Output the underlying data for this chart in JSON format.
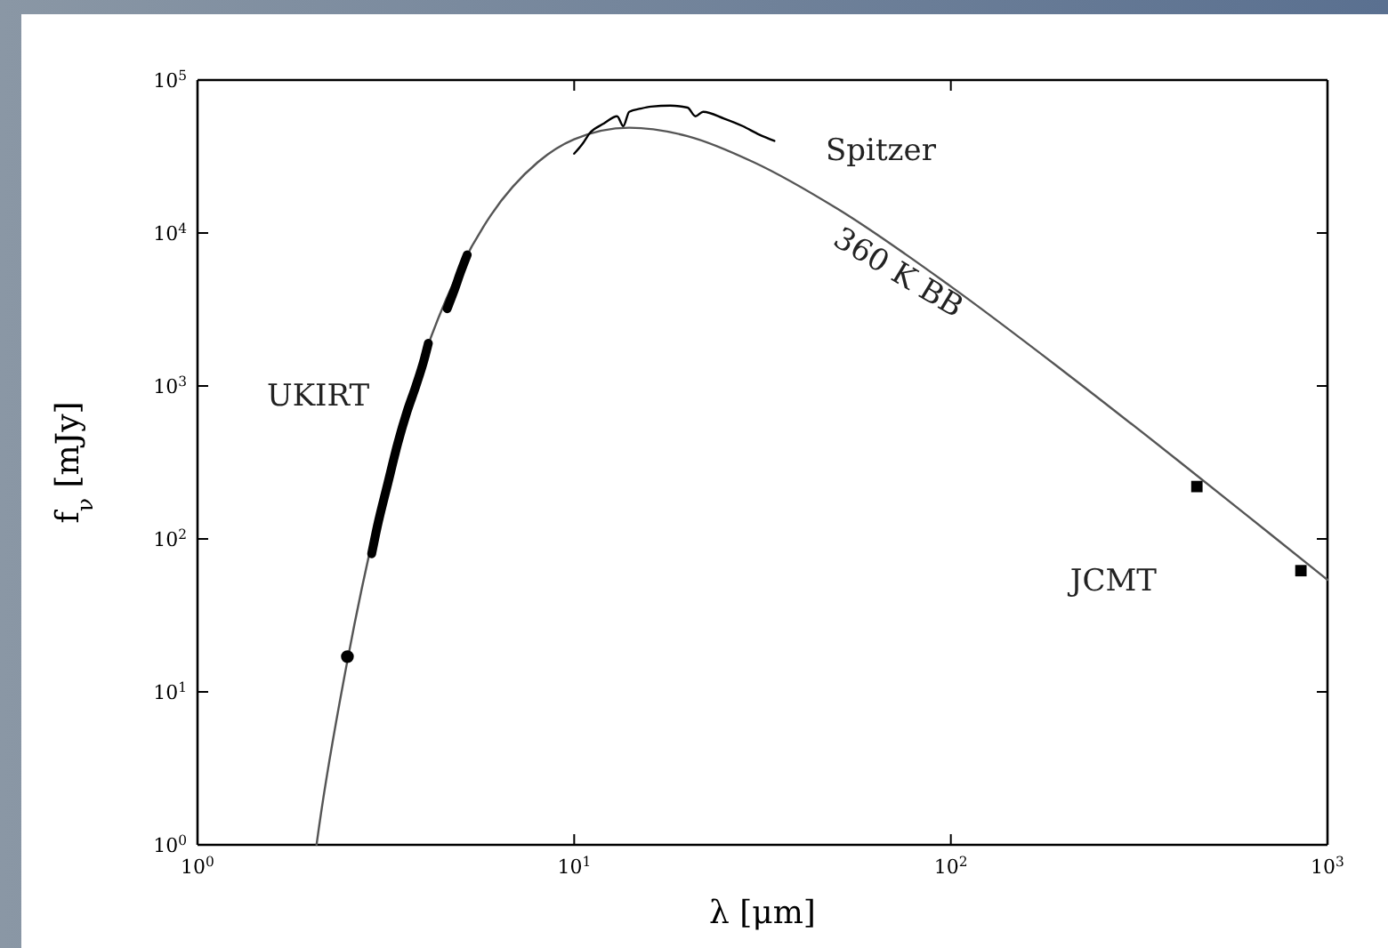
{
  "chart_data": {
    "type": "line",
    "xlabel": "λ [μm]",
    "ylabel": "f$_{ν}$ [mJy]",
    "log": "xy",
    "grid": false,
    "xlim": [
      1,
      1000
    ],
    "ylim": [
      1,
      100000
    ],
    "xticks": [
      {
        "value": 1,
        "label": "10$^{0}$"
      },
      {
        "value": 10,
        "label": "10$^{1}$"
      },
      {
        "value": 100,
        "label": "10$^{2}$"
      },
      {
        "value": 1000,
        "label": "10$^{3}$"
      }
    ],
    "yticks": [
      {
        "value": 1,
        "label": "10$^{0}$"
      },
      {
        "value": 10,
        "label": "10$^{1}$"
      },
      {
        "value": 100,
        "label": "10$^{2}$"
      },
      {
        "value": 1000,
        "label": "10$^{3}$"
      },
      {
        "value": 10000,
        "label": "10$^{4}$"
      },
      {
        "value": 100000,
        "label": "10$^{5}$"
      }
    ],
    "annotations": [
      "UKIRT",
      "Spitzer",
      "360 K BB",
      "JCMT"
    ],
    "series": [
      {
        "color": "#555555",
        "marker": "none",
        "x": [
          2.07,
          2.1,
          2.5,
          3,
          3.5,
          4,
          5,
          6,
          8,
          10,
          14,
          20,
          30,
          50,
          100,
          200,
          400,
          700,
          1000
        ],
        "values": [
          1,
          1.29,
          16,
          134,
          563,
          1580,
          5960,
          13000,
          29000,
          41000,
          48800,
          43000,
          29000,
          14400,
          4470,
          1240,
          327,
          109,
          54
        ]
      },
      {
        "color": "#000000",
        "marker": "none",
        "x": [
          2.9,
          3.0,
          3.2,
          3.4,
          3.6,
          3.8,
          4.0,
          4.1,
          4.3,
          4.6,
          4.8,
          5.0,
          5.2
        ],
        "values": [
          80,
          120,
          230,
          420,
          680,
          1000,
          1500,
          1900,
          null,
          3200,
          4200,
          5600,
          7200
        ]
      },
      {
        "type": "scatter",
        "color": "#000000",
        "marker": "circle",
        "x": [
          2.5
        ],
        "values": [
          17
        ]
      },
      {
        "color": "#000000",
        "marker": "none",
        "x": [
          10,
          10.5,
          11,
          12,
          13,
          13.5,
          14,
          15,
          16,
          18,
          20,
          21,
          22,
          25,
          28,
          31,
          34
        ],
        "values": [
          33000,
          38000,
          45000,
          52000,
          58000,
          50000,
          62000,
          65000,
          67000,
          68000,
          66000,
          58000,
          62000,
          56000,
          50000,
          44000,
          40000
        ]
      },
      {
        "type": "scatter",
        "color": "#000000",
        "marker": "square",
        "x": [
          450,
          850
        ],
        "values": [
          220,
          62
        ]
      }
    ]
  }
}
